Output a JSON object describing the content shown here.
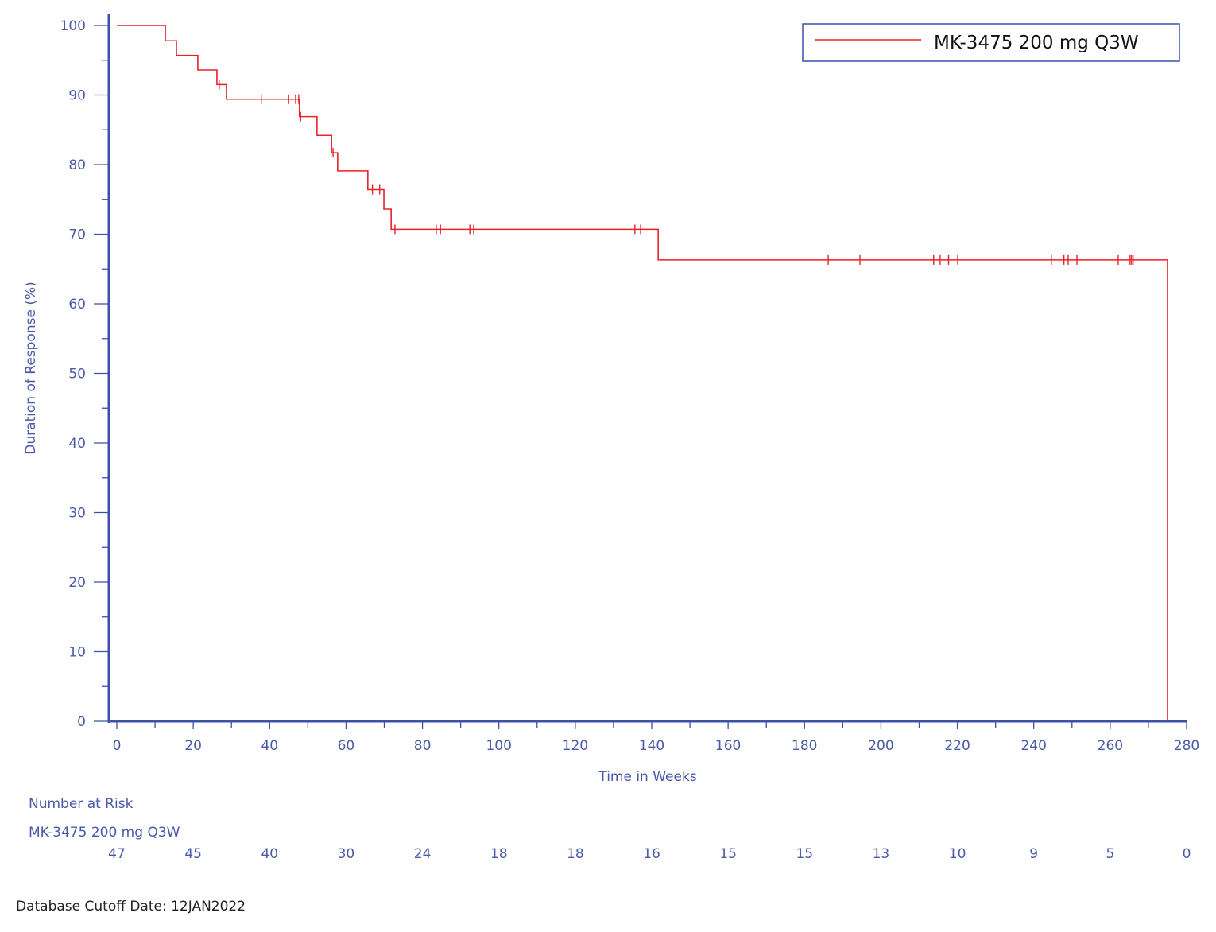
{
  "chart_data": {
    "type": "line",
    "subtype": "kaplan-meier-step",
    "title": "",
    "xlabel": "Time in Weeks",
    "ylabel": "Duration of Response (%)",
    "xlim": [
      0,
      280
    ],
    "ylim": [
      0,
      100
    ],
    "x_ticks": [
      0,
      20,
      40,
      60,
      80,
      100,
      120,
      140,
      160,
      180,
      200,
      220,
      240,
      260,
      280
    ],
    "x_minor_ticks": [
      10,
      30,
      50,
      70,
      90,
      110,
      130,
      150,
      170,
      190,
      210,
      230,
      250,
      270
    ],
    "y_ticks": [
      0,
      10,
      20,
      30,
      40,
      50,
      60,
      70,
      80,
      90,
      100
    ],
    "y_minor_ticks": [
      5,
      15,
      25,
      35,
      45,
      55,
      65,
      75,
      85,
      95
    ],
    "grid": false,
    "legend_position": "top-right",
    "series": [
      {
        "name": "MK-3475 200 mg Q3W",
        "color": "#e8222a",
        "steps": [
          [
            0,
            100
          ],
          [
            12.7,
            97.8
          ],
          [
            15.6,
            95.7
          ],
          [
            21.2,
            93.6
          ],
          [
            26.2,
            91.5
          ],
          [
            28.7,
            89.4
          ],
          [
            47.8,
            86.9
          ],
          [
            52.4,
            84.2
          ],
          [
            56.2,
            81.7
          ],
          [
            57.8,
            79.1
          ],
          [
            65.7,
            76.4
          ],
          [
            69.9,
            73.6
          ],
          [
            71.8,
            70.7
          ],
          [
            141.7,
            66.3
          ]
        ],
        "end_week": 275.0,
        "end_pct": 0,
        "censored_weeks": [
          26.8,
          37.8,
          44.9,
          46.8,
          47.6,
          48.1,
          56.6,
          66.9,
          68.8,
          72.8,
          83.6,
          84.7,
          92.4,
          93.4,
          135.6,
          137.1,
          186.2,
          194.5,
          213.8,
          215.5,
          217.7,
          220.1,
          244.6,
          247.9,
          249.0,
          251.3,
          262.1,
          265.2,
          265.6,
          266.0
        ]
      }
    ],
    "number_at_risk": {
      "title": "Number at Risk",
      "rows": [
        {
          "label": "MK-3475 200 mg Q3W",
          "weeks": [
            0,
            20,
            40,
            60,
            80,
            100,
            120,
            140,
            160,
            180,
            200,
            220,
            240,
            260,
            280
          ],
          "values": [
            47,
            45,
            40,
            30,
            24,
            18,
            18,
            16,
            15,
            15,
            13,
            10,
            9,
            5,
            0
          ]
        }
      ]
    },
    "footnote": "Database Cutoff Date: 12JAN2022"
  },
  "colors": {
    "axis": "#3a52a8",
    "text": "#4a5aa8",
    "curve": "#e8222a",
    "legend_border": "#3a52a8"
  },
  "footer": {
    "cutoff": "Database Cutoff Date: 12JAN2022"
  }
}
